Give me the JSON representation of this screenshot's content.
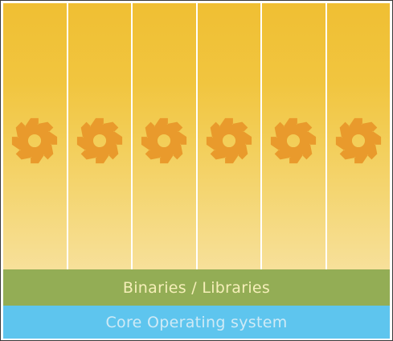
{
  "diagram": {
    "layers": {
      "binaries_libraries": "Binaries / Libraries",
      "core_os": "Core Operating system"
    },
    "applications": [
      {
        "icon": "gear-icon"
      },
      {
        "icon": "gear-icon"
      },
      {
        "icon": "gear-icon"
      },
      {
        "icon": "gear-icon"
      },
      {
        "icon": "gear-icon"
      },
      {
        "icon": "gear-icon"
      }
    ],
    "colors": {
      "app_column_top": "#f0bf33",
      "app_column_bottom": "#f7e09a",
      "gear": "#e99a2c",
      "libraries_bar": "#93ad55",
      "libraries_text": "#f6efb9",
      "os_bar": "#5ec5ee",
      "os_text": "#cfeaf6"
    }
  }
}
